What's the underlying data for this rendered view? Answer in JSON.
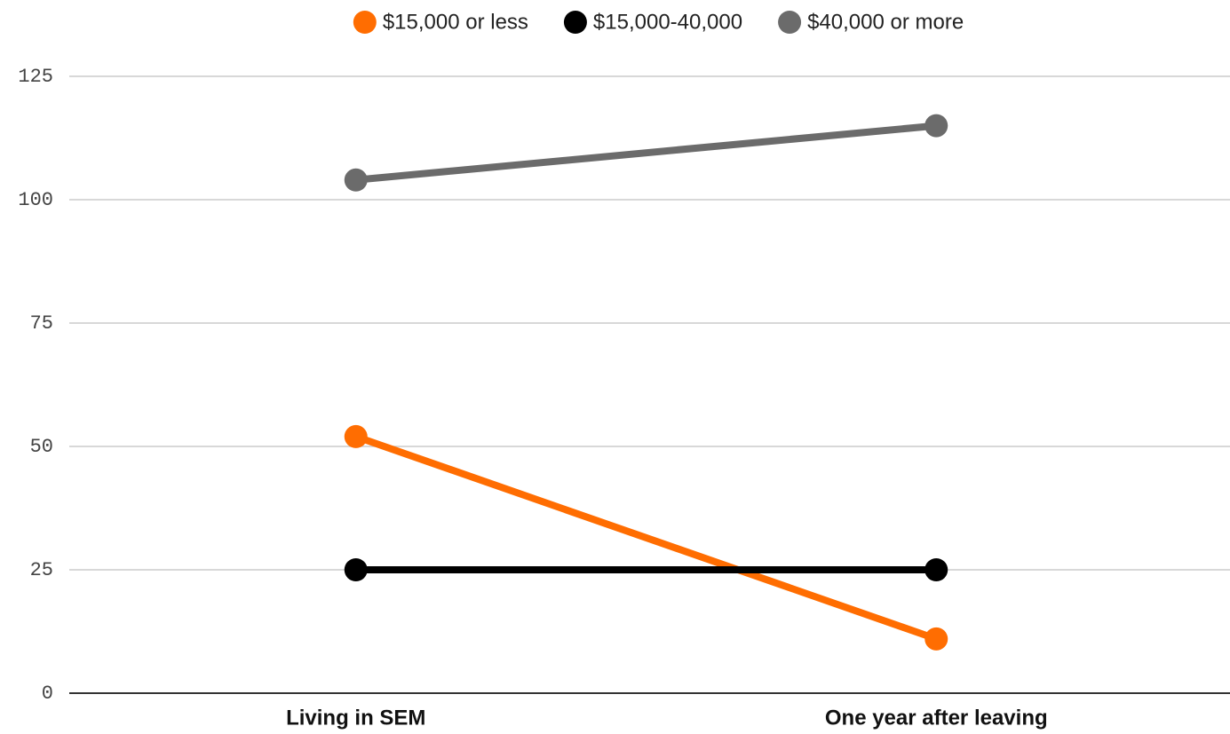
{
  "chart_data": {
    "type": "line",
    "categories": [
      "Living in SEM",
      "One year after leaving"
    ],
    "series": [
      {
        "name": "$15,000 or less",
        "color": "#ff6d01",
        "values": [
          52,
          11
        ]
      },
      {
        "name": "$15,000-40,000",
        "color": "#000000",
        "values": [
          25,
          25
        ]
      },
      {
        "name": "$40,000 or more",
        "color": "#6b6b6b",
        "values": [
          104,
          115
        ]
      }
    ],
    "ylim": [
      0,
      125
    ],
    "yticks": [
      0,
      25,
      50,
      75,
      100,
      125
    ],
    "grid": true,
    "legend": "top"
  }
}
